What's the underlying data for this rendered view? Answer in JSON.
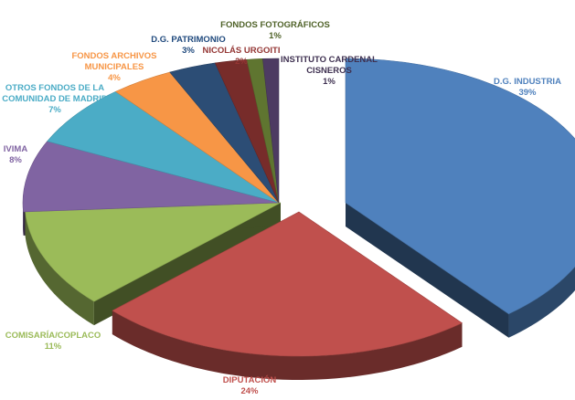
{
  "chart_data": {
    "type": "pie",
    "title": "",
    "unit": "%",
    "slices": [
      {
        "label": "D.G. INDUSTRIA",
        "label_lines": [
          "D.G. INDUSTRIA"
        ],
        "value": 39,
        "value_label": "39%",
        "color": "#4F81BD",
        "label_color": "#4F81BD"
      },
      {
        "label": "DIPUTACIÓN",
        "label_lines": [
          "DIPUTACIÓN"
        ],
        "value": 24,
        "value_label": "24%",
        "color": "#C0504D",
        "label_color": "#C0504D"
      },
      {
        "label": "COMISARÍA/COPLACO",
        "label_lines": [
          "COMISARÍA/COPLACO"
        ],
        "value": 11,
        "value_label": "11%",
        "color": "#9BBB59",
        "label_color": "#9BBB59"
      },
      {
        "label": "IVIMA",
        "label_lines": [
          "IVIMA"
        ],
        "value": 8,
        "value_label": "8%",
        "color": "#8064A2",
        "label_color": "#8064A2"
      },
      {
        "label": "OTROS FONDOS DE LA COMUNIDAD DE MADRID",
        "label_lines": [
          "OTROS FONDOS DE LA",
          "COMUNIDAD DE MADRID"
        ],
        "value": 7,
        "value_label": "7%",
        "color": "#4BACC6",
        "label_color": "#4BACC6"
      },
      {
        "label": "FONDOS ARCHIVOS MUNICIPALES",
        "label_lines": [
          "FONDOS ARCHIVOS",
          "MUNICIPALES"
        ],
        "value": 4,
        "value_label": "4%",
        "color": "#F79646",
        "label_color": "#F79646"
      },
      {
        "label": "D.G. PATRIMONIO",
        "label_lines": [
          "D.G. PATRIMONIO"
        ],
        "value": 3,
        "value_label": "3%",
        "color": "#2C4D75",
        "label_color": "#1F497D"
      },
      {
        "label": "NICOLÁS URGOITI",
        "label_lines": [
          "NICOLÁS URGOITI"
        ],
        "value": 2,
        "value_label": "2%",
        "color": "#772C2A",
        "label_color": "#943634"
      },
      {
        "label": "FONDOS FOTOGRÁFICOS",
        "label_lines": [
          "FONDOS FOTOGRÁFICOS"
        ],
        "value": 1,
        "value_label": "1%",
        "color": "#5F7530",
        "label_color": "#4F6228"
      },
      {
        "label": "INSTITUTO CARDENAL CISNEROS",
        "label_lines": [
          "INSTITUTO CARDENAL",
          "CISNEROS"
        ],
        "value": 1,
        "value_label": "1%",
        "color": "#4D3B62",
        "label_color": "#3F3151"
      }
    ]
  }
}
